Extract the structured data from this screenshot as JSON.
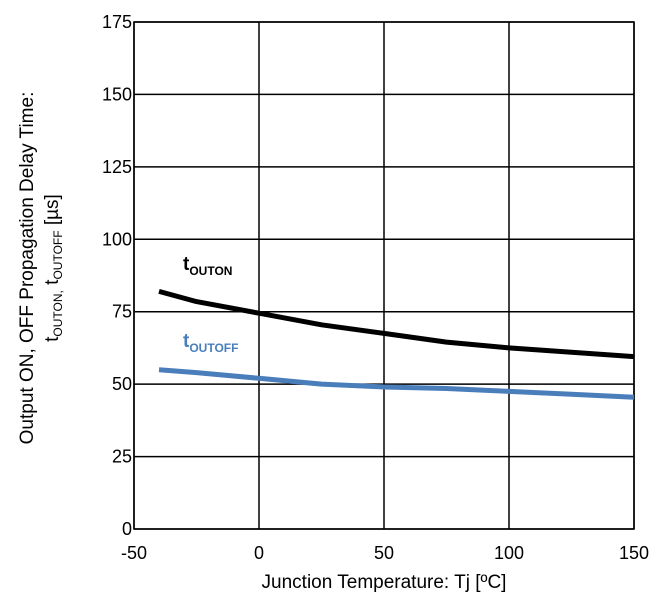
{
  "chart_data": {
    "type": "line",
    "xlabel": "Junction Temperature: Tj [ºC]",
    "ylabel": {
      "line1": "Output ON, OFF Propagation Delay Time:",
      "line2_t1": "t",
      "line2_sub1": "OUTON,",
      "line2_t2": " t",
      "line2_sub2": "OUTOFF",
      "line2_unit": " [µs]"
    },
    "xlim": [
      -50,
      150
    ],
    "ylim": [
      0,
      175
    ],
    "xticks": [
      "-50",
      "0",
      "50",
      "100",
      "150"
    ],
    "xtick_values": [
      -50,
      0,
      50,
      100,
      150
    ],
    "yticks": [
      "0",
      "25",
      "50",
      "75",
      "100",
      "125",
      "150",
      "175"
    ],
    "ytick_values": [
      0,
      25,
      50,
      75,
      100,
      125,
      150,
      175
    ],
    "grid": true,
    "series": [
      {
        "label_t": "t",
        "label_sub": "OUTON",
        "color": "#000000",
        "x": [
          -40,
          -25,
          0,
          25,
          50,
          75,
          100,
          125,
          150
        ],
        "y": [
          82,
          78.5,
          74.5,
          70.5,
          67.5,
          64.5,
          62.5,
          61,
          59.5
        ]
      },
      {
        "label_t": "t",
        "label_sub": "OUTOFF",
        "color": "#4a7ebb",
        "x": [
          -40,
          -25,
          0,
          25,
          50,
          75,
          100,
          125,
          150
        ],
        "y": [
          55,
          54,
          52,
          50,
          49,
          48.5,
          47.5,
          46.5,
          45.5
        ]
      }
    ]
  }
}
